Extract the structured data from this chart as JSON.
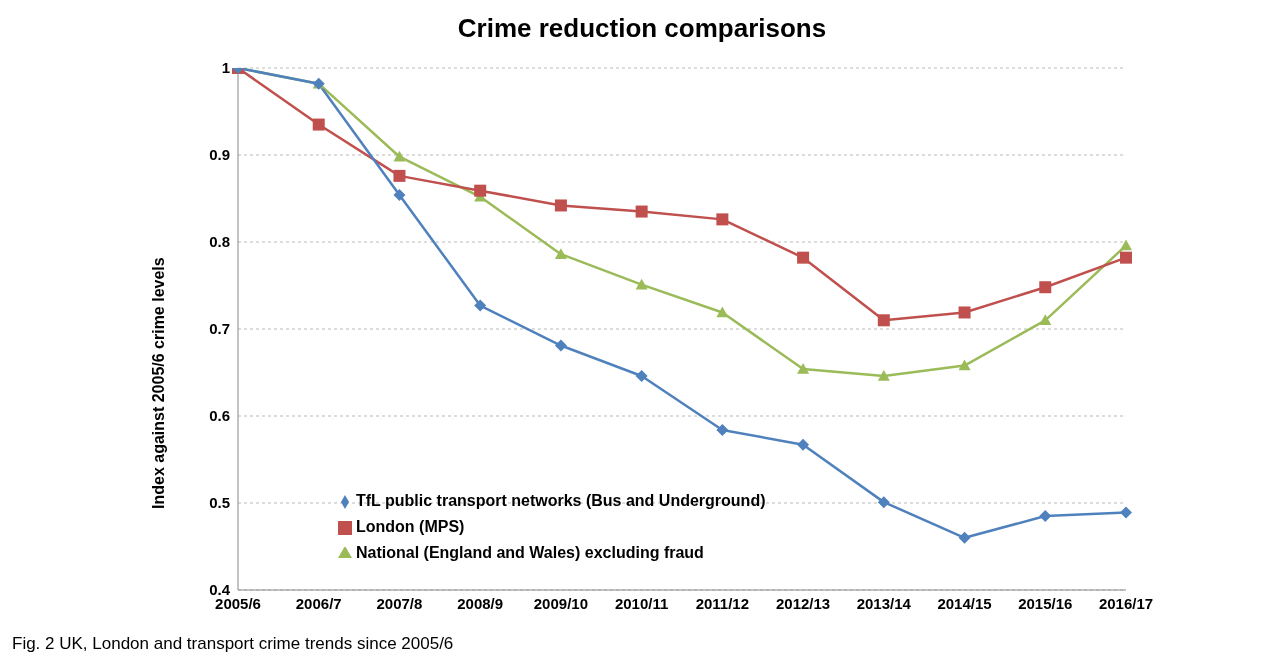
{
  "chart_data": {
    "type": "line",
    "title": "Crime reduction comparisons",
    "ylabel": "Index against 2005/6 crime levels",
    "categories": [
      "2005/6",
      "2006/7",
      "2007/8",
      "2008/9",
      "2009/10",
      "2010/11",
      "2011/12",
      "2012/13",
      "2013/14",
      "2014/15",
      "2015/16",
      "2016/17"
    ],
    "series": [
      {
        "name": "TfL public transport networks (Bus and Underground)",
        "color": "#4f81bd",
        "marker": "diamond",
        "values": [
          1.0,
          0.982,
          0.854,
          0.727,
          0.681,
          0.646,
          0.584,
          0.567,
          0.501,
          0.46,
          0.485,
          0.489
        ]
      },
      {
        "name": "London (MPS)",
        "color": "#c0504d",
        "marker": "square",
        "values": [
          1.0,
          0.935,
          0.876,
          0.859,
          0.842,
          0.835,
          0.826,
          0.782,
          0.71,
          0.719,
          0.748,
          0.782
        ]
      },
      {
        "name": "National (England and Wales) excluding fraud",
        "color": "#9bbb59",
        "marker": "triangle",
        "values": [
          1.0,
          0.982,
          0.898,
          0.852,
          0.786,
          0.751,
          0.719,
          0.654,
          0.646,
          0.658,
          0.71,
          0.796
        ]
      }
    ],
    "ylim": [
      0.4,
      1
    ],
    "yticks": [
      0.4,
      0.5,
      0.6,
      0.7,
      0.8,
      0.9,
      1
    ],
    "grid": "y",
    "legend": "bottom left",
    "line_style": "solid",
    "annotations": [
      "Fig. 2  UK, London and transport crime trends since 2005/6"
    ]
  }
}
